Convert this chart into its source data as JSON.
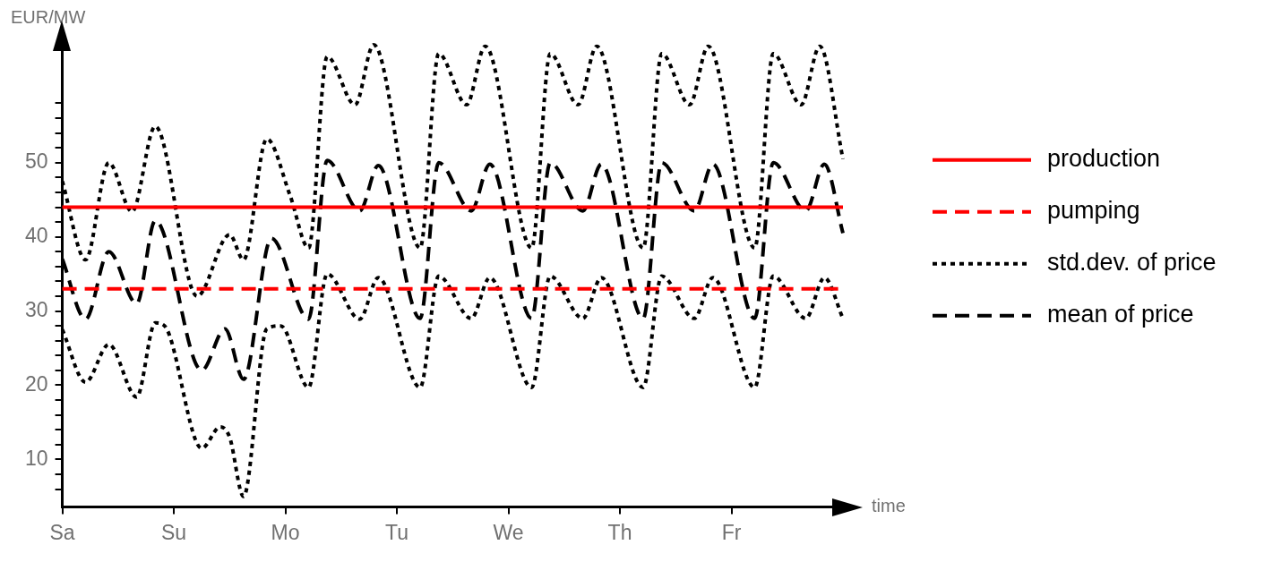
{
  "chart_data": {
    "type": "line",
    "xlabel": "time",
    "ylabel": "EUR/MW",
    "categories": [
      "Sa",
      null,
      null,
      null,
      null,
      null,
      null,
      null,
      null,
      null,
      null,
      null,
      null,
      null,
      null,
      null,
      null,
      null,
      null,
      null,
      null,
      null,
      null,
      null,
      "Su",
      null,
      null,
      null,
      null,
      null,
      null,
      null,
      null,
      null,
      null,
      null,
      null,
      null,
      null,
      null,
      null,
      null,
      null,
      null,
      null,
      null,
      null,
      null,
      "Mo",
      null,
      null,
      null,
      null,
      null,
      null,
      null,
      null,
      null,
      null,
      null,
      null,
      null,
      null,
      null,
      null,
      null,
      null,
      null,
      null,
      null,
      null,
      null,
      "Tu",
      null,
      null,
      null,
      null,
      null,
      null,
      null,
      null,
      null,
      null,
      null,
      null,
      null,
      null,
      null,
      null,
      null,
      null,
      null,
      null,
      null,
      null,
      null,
      "We",
      null,
      null,
      null,
      null,
      null,
      null,
      null,
      null,
      null,
      null,
      null,
      null,
      null,
      null,
      null,
      null,
      null,
      null,
      null,
      null,
      null,
      null,
      null,
      "Th",
      null,
      null,
      null,
      null,
      null,
      null,
      null,
      null,
      null,
      null,
      null,
      null,
      null,
      null,
      null,
      null,
      null,
      null,
      null,
      null,
      null,
      null,
      null,
      "Fr",
      null,
      null,
      null,
      null,
      null,
      null,
      null,
      null,
      null,
      null,
      null,
      null,
      null,
      null,
      null,
      null,
      null,
      null,
      null,
      null,
      null,
      null,
      null,
      null
    ],
    "ylim": [
      3.6,
      66.5
    ],
    "yticks": [
      {
        "value": 6,
        "label": null
      },
      {
        "value": 8,
        "label": null
      },
      10,
      {
        "value": 12,
        "label": null
      },
      {
        "value": 14,
        "label": null
      },
      {
        "value": 16,
        "label": null
      },
      {
        "value": 18,
        "label": null
      },
      20,
      {
        "value": 22,
        "label": null
      },
      {
        "value": 24,
        "label": null
      },
      {
        "value": 26,
        "label": null
      },
      {
        "value": 28,
        "label": null
      },
      30,
      {
        "value": 32,
        "label": null
      },
      {
        "value": 34,
        "label": null
      },
      {
        "value": 36,
        "label": null
      },
      {
        "value": 38,
        "label": null
      },
      40,
      {
        "value": 42,
        "label": null
      },
      {
        "value": 44,
        "label": null
      },
      {
        "value": 46,
        "label": null
      },
      {
        "value": 48,
        "label": null
      },
      50,
      {
        "value": 52,
        "label": null
      },
      {
        "value": 54,
        "label": null
      },
      {
        "value": 56,
        "label": null
      },
      {
        "value": 58,
        "label": null
      }
    ],
    "grid": false,
    "legend": "right",
    "marker": "none",
    "series": [
      {
        "name": "production",
        "color": "#ff0000",
        "line_style": "solid",
        "values": [
          44,
          null,
          null,
          null,
          null,
          null,
          null,
          null,
          null,
          null,
          null,
          null,
          null,
          null,
          null,
          null,
          null,
          null,
          null,
          null,
          null,
          null,
          null,
          null,
          null,
          null,
          null,
          null,
          null,
          null,
          null,
          null,
          null,
          null,
          null,
          null,
          null,
          null,
          null,
          null,
          null,
          null,
          null,
          null,
          null,
          null,
          null,
          null,
          null,
          null,
          null,
          null,
          null,
          null,
          null,
          null,
          null,
          null,
          null,
          null,
          null,
          null,
          null,
          null,
          null,
          null,
          null,
          null,
          null,
          null,
          null,
          null,
          null,
          null,
          null,
          null,
          null,
          null,
          null,
          null,
          null,
          null,
          null,
          null,
          null,
          null,
          null,
          null,
          null,
          null,
          null,
          null,
          null,
          null,
          null,
          null,
          null,
          null,
          null,
          null,
          null,
          null,
          null,
          null,
          null,
          null,
          null,
          null,
          null,
          null,
          null,
          null,
          null,
          null,
          null,
          null,
          null,
          null,
          null,
          null,
          null,
          null,
          null,
          null,
          null,
          null,
          null,
          null,
          null,
          null,
          null,
          null,
          null,
          null,
          null,
          null,
          null,
          null,
          null,
          null,
          null,
          null,
          null,
          null,
          null,
          null,
          null,
          null,
          null,
          null,
          null,
          null,
          null,
          null,
          null,
          null,
          null,
          null,
          null,
          null,
          null,
          null,
          null,
          null,
          null,
          null,
          null,
          null,
          44
        ]
      },
      {
        "name": "pumping",
        "color": "#ff0000",
        "line_style": "dashed",
        "values": [
          33,
          null,
          null,
          null,
          null,
          null,
          null,
          null,
          null,
          null,
          null,
          null,
          null,
          null,
          null,
          null,
          null,
          null,
          null,
          null,
          null,
          null,
          null,
          null,
          null,
          null,
          null,
          null,
          null,
          null,
          null,
          null,
          null,
          null,
          null,
          null,
          null,
          null,
          null,
          null,
          null,
          null,
          null,
          null,
          null,
          null,
          null,
          null,
          null,
          null,
          null,
          null,
          null,
          null,
          null,
          null,
          null,
          null,
          null,
          null,
          null,
          null,
          null,
          null,
          null,
          null,
          null,
          null,
          null,
          null,
          null,
          null,
          null,
          null,
          null,
          null,
          null,
          null,
          null,
          null,
          null,
          null,
          null,
          null,
          null,
          null,
          null,
          null,
          null,
          null,
          null,
          null,
          null,
          null,
          null,
          null,
          null,
          null,
          null,
          null,
          null,
          null,
          null,
          null,
          null,
          null,
          null,
          null,
          null,
          null,
          null,
          null,
          null,
          null,
          null,
          null,
          null,
          null,
          null,
          null,
          null,
          null,
          null,
          null,
          null,
          null,
          null,
          null,
          null,
          null,
          null,
          null,
          null,
          null,
          null,
          null,
          null,
          null,
          null,
          null,
          null,
          null,
          null,
          null,
          null,
          null,
          null,
          null,
          null,
          null,
          null,
          null,
          null,
          null,
          null,
          null,
          null,
          null,
          null,
          null,
          null,
          null,
          null,
          null,
          null,
          null,
          null,
          null,
          33
        ]
      },
      {
        "name": "std.dev. of price",
        "color": "#000000",
        "line_style": "dotted",
        "values": [
          47.5,
          null,
          null,
          null,
          null,
          36.9,
          null,
          null,
          null,
          null,
          50,
          null,
          null,
          null,
          null,
          43.4,
          null,
          null,
          null,
          null,
          54.9,
          null,
          null,
          null,
          null,
          null,
          null,
          null,
          null,
          32,
          null,
          null,
          null,
          null,
          null,
          null,
          40.3,
          null,
          null,
          36.9,
          null,
          null,
          null,
          null,
          53.2,
          null,
          null,
          null,
          null,
          45.6,
          null,
          null,
          null,
          38.5,
          null,
          null,
          null,
          64.3,
          null,
          null,
          null,
          null,
          null,
          57.8,
          null,
          null,
          null,
          65.9,
          null,
          null,
          null,
          null,
          null,
          null,
          null,
          null,
          null,
          38.5,
          null,
          null,
          null,
          64.7,
          null,
          null,
          null,
          null,
          null,
          57.8,
          null,
          null,
          null,
          65.7,
          null,
          null,
          null,
          null,
          null,
          null,
          null,
          null,
          null,
          38.5,
          null,
          null,
          null,
          64.7,
          null,
          null,
          null,
          null,
          null,
          57.8,
          null,
          null,
          null,
          65.7,
          null,
          null,
          null,
          null,
          null,
          null,
          null,
          null,
          null,
          38.5,
          null,
          null,
          null,
          64.7,
          null,
          null,
          null,
          null,
          null,
          57.8,
          null,
          null,
          null,
          65.7,
          null,
          null,
          null,
          null,
          null,
          null,
          null,
          null,
          null,
          38.5,
          null,
          null,
          null,
          64.7,
          null,
          null,
          null,
          null,
          null,
          57.8,
          null,
          null,
          null,
          65.7,
          null,
          null,
          null,
          null,
          50.5
        ]
      },
      {
        "name": "mean of price",
        "color": "#000000",
        "line_style": "dashed",
        "values": [
          37,
          null,
          null,
          null,
          null,
          28.9,
          null,
          null,
          null,
          null,
          38,
          null,
          null,
          null,
          null,
          null,
          31,
          null,
          null,
          null,
          42.2,
          null,
          null,
          null,
          null,
          null,
          null,
          null,
          null,
          null,
          22,
          null,
          null,
          null,
          null,
          27.6,
          null,
          null,
          null,
          20.8,
          null,
          null,
          null,
          null,
          null,
          39.8,
          null,
          null,
          null,
          null,
          null,
          null,
          null,
          28.9,
          null,
          null,
          null,
          50.3,
          null,
          null,
          null,
          null,
          null,
          null,
          43.5,
          null,
          null,
          null,
          49.6,
          null,
          null,
          null,
          null,
          null,
          null,
          null,
          null,
          29,
          null,
          null,
          null,
          50,
          null,
          null,
          null,
          null,
          null,
          null,
          43.5,
          null,
          null,
          null,
          49.8,
          null,
          null,
          null,
          null,
          null,
          null,
          null,
          null,
          29,
          null,
          null,
          null,
          50,
          null,
          null,
          null,
          null,
          null,
          null,
          43.5,
          null,
          null,
          null,
          49.8,
          null,
          null,
          null,
          null,
          null,
          null,
          null,
          null,
          29,
          null,
          null,
          null,
          50,
          null,
          null,
          null,
          null,
          null,
          null,
          43.5,
          null,
          null,
          null,
          49.8,
          null,
          null,
          null,
          null,
          null,
          null,
          null,
          null,
          29,
          null,
          null,
          null,
          50,
          null,
          null,
          null,
          null,
          null,
          null,
          43.5,
          null,
          null,
          null,
          49.8,
          null,
          null,
          null,
          40.5
        ]
      },
      {
        "color": "#000000",
        "line_style": "dotted",
        "values": [
          27.5,
          null,
          null,
          null,
          null,
          20.4,
          null,
          null,
          null,
          null,
          25.5,
          null,
          null,
          null,
          null,
          null,
          18.4,
          null,
          null,
          null,
          28.4,
          null,
          28,
          null,
          null,
          null,
          null,
          null,
          null,
          null,
          11.5,
          null,
          null,
          null,
          14.4,
          null,
          13,
          null,
          null,
          5,
          null,
          null,
          null,
          null,
          27.6,
          null,
          null,
          28,
          null,
          null,
          null,
          null,
          null,
          19.7,
          null,
          null,
          null,
          35,
          null,
          null,
          null,
          null,
          null,
          null,
          28.9,
          null,
          null,
          null,
          34.5,
          null,
          null,
          null,
          null,
          null,
          null,
          null,
          null,
          19.7,
          null,
          null,
          null,
          34.7,
          null,
          null,
          null,
          null,
          null,
          null,
          29,
          null,
          null,
          null,
          34.5,
          null,
          null,
          null,
          null,
          null,
          null,
          null,
          null,
          19.7,
          null,
          null,
          null,
          34.7,
          null,
          null,
          null,
          null,
          null,
          null,
          29,
          null,
          null,
          null,
          34.5,
          null,
          null,
          null,
          null,
          null,
          null,
          null,
          null,
          19.7,
          null,
          null,
          null,
          34.7,
          null,
          null,
          null,
          null,
          null,
          null,
          29,
          null,
          null,
          null,
          34.5,
          null,
          null,
          null,
          null,
          null,
          null,
          null,
          null,
          19.7,
          null,
          null,
          null,
          34.7,
          null,
          null,
          null,
          null,
          null,
          null,
          29,
          null,
          null,
          null,
          34.5,
          null,
          null,
          null,
          29
        ]
      }
    ]
  }
}
